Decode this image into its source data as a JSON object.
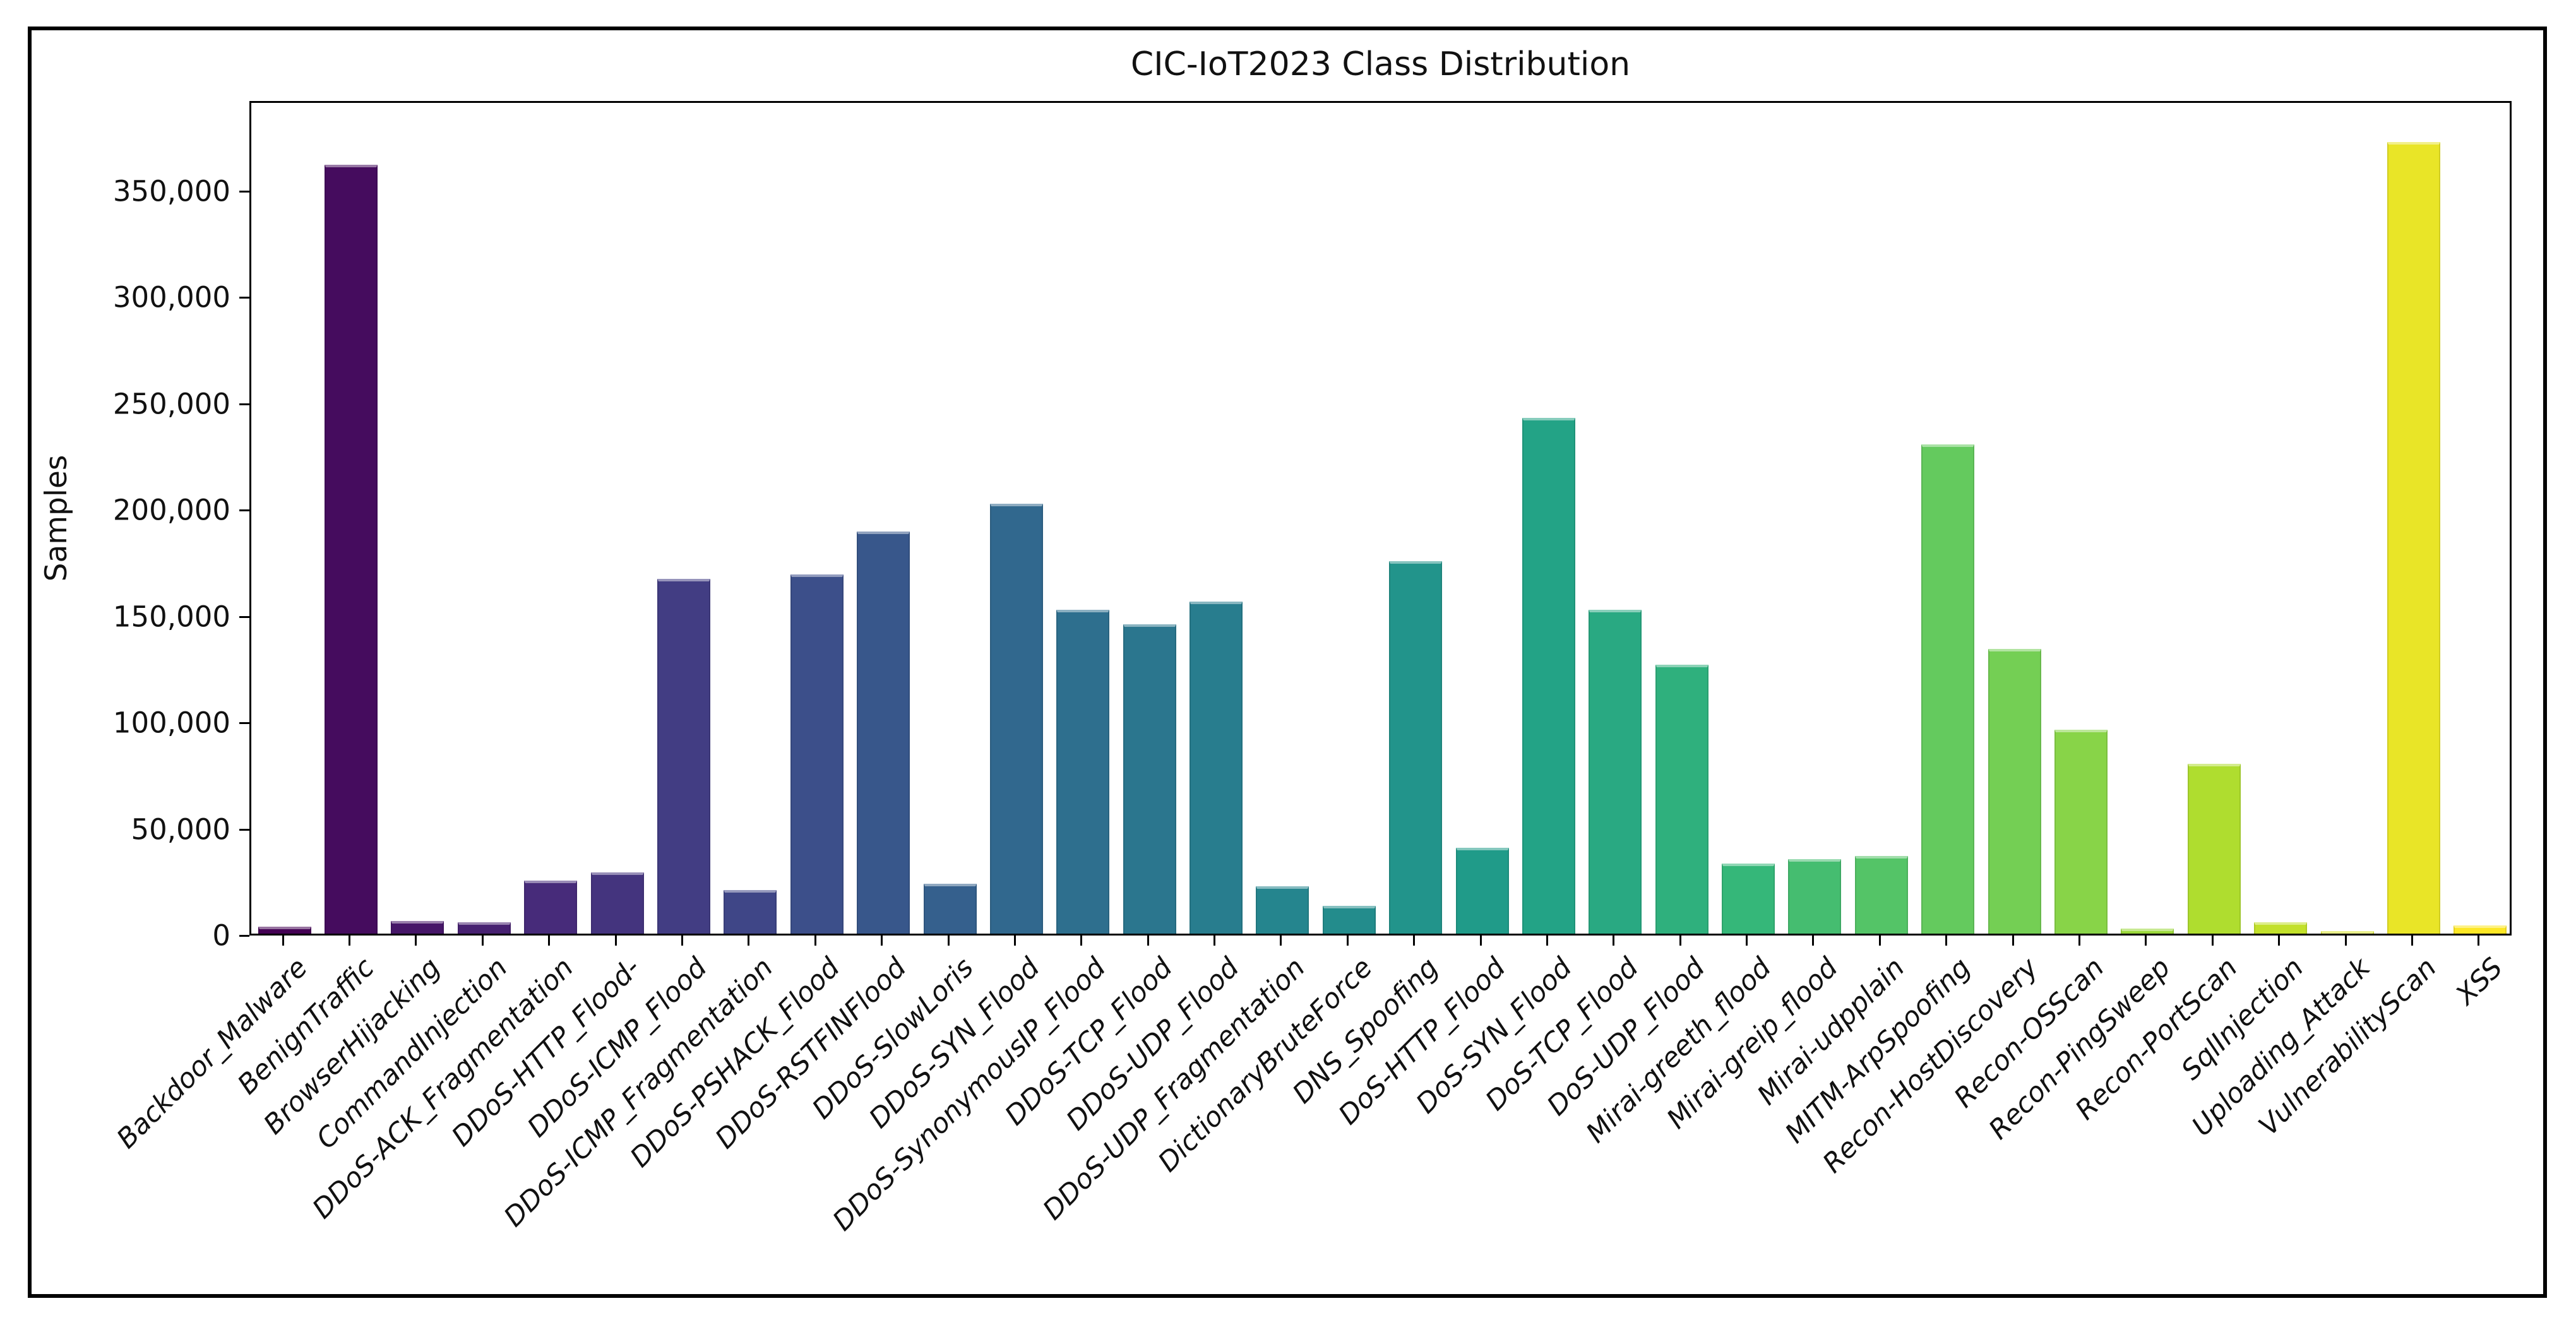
{
  "figure": {
    "title": "CIC-IoT2023 Class Distribution",
    "ylabel": "Samples",
    "background_color": "#ffffff",
    "frame_color": "#000000"
  },
  "chart_data": {
    "type": "bar",
    "title": "CIC-IoT2023 Class Distribution",
    "xlabel": "",
    "ylabel": "Samples",
    "ylim": [
      0,
      392400
    ],
    "grid": false,
    "legend": false,
    "x_tick_rotation_degrees": 45,
    "x_tick_style": "italic",
    "palette_name": "viridis",
    "colormap_anchors": [
      "#440154",
      "#482878",
      "#3e4989",
      "#31688e",
      "#26828e",
      "#1f9e89",
      "#35b779",
      "#6ece58",
      "#b5de2b",
      "#fde725"
    ],
    "y_ticks": [
      {
        "value": 0,
        "label": "0"
      },
      {
        "value": 50000,
        "label": "50,000"
      },
      {
        "value": 100000,
        "label": "100,000"
      },
      {
        "value": 150000,
        "label": "150,000"
      },
      {
        "value": 200000,
        "label": "200,000"
      },
      {
        "value": 250000,
        "label": "250,000"
      },
      {
        "value": 300000,
        "label": "300,000"
      },
      {
        "value": 350000,
        "label": "350,000"
      }
    ],
    "categories": [
      "Backdoor_Malware",
      "BenignTraffic",
      "BrowserHijacking",
      "CommandInjection",
      "DDoS-ACK_Fragmentation",
      "DDoS-HTTP_Flood-",
      "DDoS-ICMP_Flood",
      "DDoS-ICMP_Fragmentation",
      "DDoS-PSHACK_Flood",
      "DDoS-RSTFINFlood",
      "DDoS-SlowLoris",
      "DDoS-SYN_Flood",
      "DDoS-SynonymousIP_Flood",
      "DDoS-TCP_Flood",
      "DDoS-UDP_Flood",
      "DDoS-UDP_Fragmentation",
      "DictionaryBruteForce",
      "DNS_Spoofing",
      "DoS-HTTP_Flood",
      "DoS-SYN_Flood",
      "DoS-TCP_Flood",
      "DoS-UDP_Flood",
      "Mirai-greeth_flood",
      "Mirai-greip_flood",
      "Mirai-udpplain",
      "MITM-ArpSpoofing",
      "Recon-HostDiscovery",
      "Recon-OSScan",
      "Recon-PingSweep",
      "Recon-PortScan",
      "SqlInjection",
      "Uploading_Attack",
      "VulnerabilityScan",
      "XSS"
    ],
    "values": [
      3200,
      361500,
      5800,
      5400,
      24800,
      28800,
      166800,
      20500,
      168800,
      189000,
      23400,
      202300,
      152200,
      145500,
      156100,
      22300,
      13100,
      175000,
      40500,
      242600,
      152400,
      126500,
      33000,
      35000,
      36500,
      230100,
      134000,
      96000,
      2300,
      80000,
      5200,
      1300,
      372200,
      3800
    ]
  }
}
